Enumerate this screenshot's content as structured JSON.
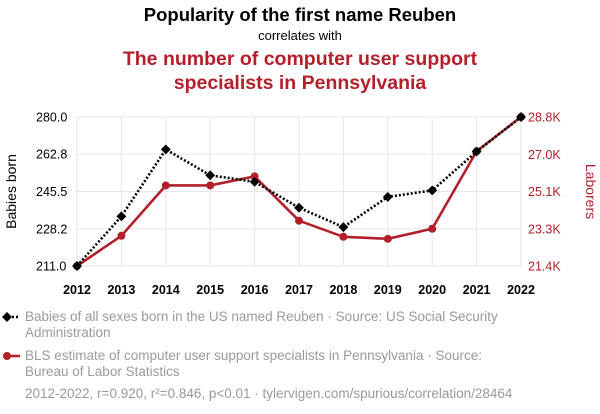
{
  "header": {
    "title": "Popularity of the first name Reuben",
    "subtitle": "correlates with",
    "title2_line1": "The number of computer user support",
    "title2_line2": "specialists in Pennsylvania"
  },
  "legend": {
    "series1_line1": "Babies of all sexes born in the US named Reuben · Source: US Social Security",
    "series1_line2": "Administration",
    "series2_line1": "BLS estimate of computer user support specialists in Pennsylvania · Source:",
    "series2_line2": "Bureau of Labor Statistics"
  },
  "footer": {
    "stats": "2012-2022, r=0.920, r²=0.846, p<0.01 · tylervigen.com/spurious/correlation/28464"
  },
  "colors": {
    "series1": "#000000",
    "series2": "#b3202c",
    "grid": "#e6e6e6"
  },
  "chart_data": {
    "type": "line",
    "x": [
      2012,
      2013,
      2014,
      2015,
      2016,
      2017,
      2018,
      2019,
      2020,
      2021,
      2022
    ],
    "xlabels": [
      "2012",
      "2013",
      "2014",
      "2015",
      "2016",
      "2017",
      "2018",
      "2019",
      "2020",
      "2021",
      "2022"
    ],
    "ylabel_left": "Babies born",
    "ylabel_right": "Laborers",
    "ylim_left": [
      211.0,
      280.0
    ],
    "ylim_right": [
      21400,
      28800
    ],
    "yticks_left": [
      211.0,
      228.2,
      245.5,
      262.8,
      280.0
    ],
    "yticks_left_labels": [
      "211.0",
      "228.2",
      "245.5",
      "262.8",
      "280.0"
    ],
    "yticks_right": [
      21400,
      23250,
      25100,
      26950,
      28800
    ],
    "yticks_right_labels": [
      "21.4K",
      "23.3K",
      "25.1K",
      "27.0K",
      "28.8K"
    ],
    "grid": true,
    "series": [
      {
        "values": [
          211,
          234,
          265,
          253,
          250,
          238,
          229,
          243,
          246,
          264,
          280
        ],
        "axis": "left",
        "style": "dotted",
        "marker": "diamond"
      },
      {
        "values": [
          21400,
          22900,
          25400,
          25400,
          25850,
          23650,
          22850,
          22750,
          23250,
          27100,
          28800
        ],
        "axis": "right",
        "style": "solid",
        "marker": "circle"
      }
    ]
  }
}
